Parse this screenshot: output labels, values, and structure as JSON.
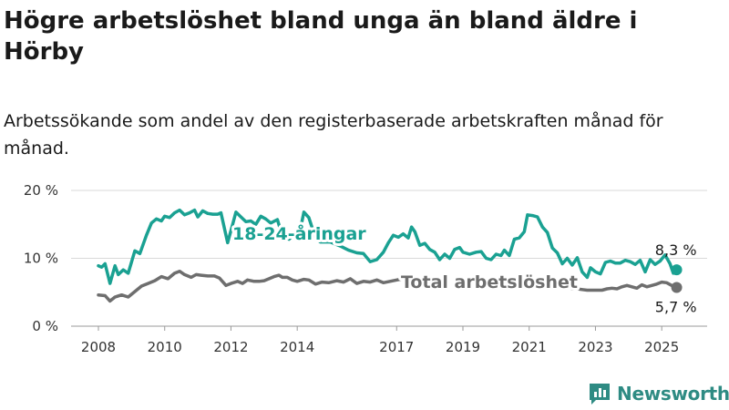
{
  "title": "Högre arbetslöshet bland unga än bland äldre i Hörby",
  "subtitle": "Arbetssökande som andel av den registerbaserade arbetskraften månad för månad.",
  "brand": "Newsworthy",
  "colors": {
    "youth": "#1aa192",
    "total": "#6e6e6e",
    "grid": "#d9d9d9",
    "brand": "#2e8b83"
  },
  "chart_data": {
    "type": "line",
    "y_unit": "%",
    "ylim": [
      0,
      20
    ],
    "y_ticks": [
      0,
      10,
      20
    ],
    "y_tick_labels": [
      "0 %",
      "10 %",
      "20 %"
    ],
    "x_range": [
      2008.0,
      2025.6
    ],
    "x_ticks": [
      2008,
      2010,
      2012,
      2014,
      2017,
      2019,
      2021,
      2023,
      2025
    ],
    "x_tick_labels": [
      "2008",
      "2010",
      "2012",
      "2014",
      "2017",
      "2019",
      "2021",
      "2023",
      "2025"
    ],
    "grid": true,
    "legend": "inline-labels",
    "series": [
      {
        "name": "18-24-åringar",
        "end_label": "8,3 %",
        "points": [
          [
            2008.0,
            8.9
          ],
          [
            2008.1,
            8.7
          ],
          [
            2008.2,
            9.2
          ],
          [
            2008.35,
            6.3
          ],
          [
            2008.5,
            8.9
          ],
          [
            2008.6,
            7.6
          ],
          [
            2008.75,
            8.3
          ],
          [
            2008.9,
            7.8
          ],
          [
            2009.1,
            11.1
          ],
          [
            2009.25,
            10.7
          ],
          [
            2009.45,
            13.4
          ],
          [
            2009.6,
            15.2
          ],
          [
            2009.75,
            15.8
          ],
          [
            2009.9,
            15.5
          ],
          [
            2010.0,
            16.2
          ],
          [
            2010.15,
            16.0
          ],
          [
            2010.3,
            16.7
          ],
          [
            2010.45,
            17.1
          ],
          [
            2010.6,
            16.4
          ],
          [
            2010.75,
            16.7
          ],
          [
            2010.9,
            17.1
          ],
          [
            2011.0,
            16.1
          ],
          [
            2011.15,
            17.0
          ],
          [
            2011.3,
            16.6
          ],
          [
            2011.45,
            16.5
          ],
          [
            2011.6,
            16.5
          ],
          [
            2011.7,
            16.7
          ],
          [
            2011.9,
            12.3
          ],
          [
            2012.05,
            15.0
          ],
          [
            2012.15,
            16.8
          ],
          [
            2012.3,
            16.1
          ],
          [
            2012.45,
            15.4
          ],
          [
            2012.6,
            15.5
          ],
          [
            2012.75,
            15.0
          ],
          [
            2012.9,
            16.2
          ],
          [
            2013.05,
            15.8
          ],
          [
            2013.2,
            15.2
          ],
          [
            2013.4,
            15.7
          ],
          [
            2013.55,
            13.3
          ],
          [
            2013.75,
            12.8
          ],
          [
            2013.95,
            13.8
          ],
          [
            2014.1,
            14.4
          ],
          [
            2014.2,
            16.8
          ],
          [
            2014.35,
            16.0
          ],
          [
            2014.55,
            13.0
          ],
          [
            2014.7,
            12.4
          ],
          [
            2015.0,
            12.4
          ],
          [
            2015.3,
            11.8
          ],
          [
            2015.55,
            11.2
          ],
          [
            2015.8,
            10.8
          ],
          [
            2016.0,
            10.7
          ],
          [
            2016.2,
            9.5
          ],
          [
            2016.4,
            9.8
          ],
          [
            2016.6,
            10.9
          ],
          [
            2016.75,
            12.3
          ],
          [
            2016.9,
            13.4
          ],
          [
            2017.05,
            13.1
          ],
          [
            2017.2,
            13.6
          ],
          [
            2017.35,
            13.0
          ],
          [
            2017.45,
            14.6
          ],
          [
            2017.55,
            13.9
          ],
          [
            2017.7,
            11.9
          ],
          [
            2017.85,
            12.2
          ],
          [
            2018.0,
            11.3
          ],
          [
            2018.15,
            10.9
          ],
          [
            2018.3,
            9.8
          ],
          [
            2018.45,
            10.6
          ],
          [
            2018.6,
            10.0
          ],
          [
            2018.75,
            11.3
          ],
          [
            2018.9,
            11.6
          ],
          [
            2019.0,
            10.9
          ],
          [
            2019.2,
            10.6
          ],
          [
            2019.4,
            10.9
          ],
          [
            2019.55,
            11.0
          ],
          [
            2019.7,
            10.0
          ],
          [
            2019.85,
            9.8
          ],
          [
            2020.0,
            10.6
          ],
          [
            2020.15,
            10.4
          ],
          [
            2020.25,
            11.2
          ],
          [
            2020.4,
            10.4
          ],
          [
            2020.55,
            12.8
          ],
          [
            2020.7,
            13.0
          ],
          [
            2020.85,
            13.9
          ],
          [
            2020.95,
            16.4
          ],
          [
            2021.1,
            16.3
          ],
          [
            2021.25,
            16.1
          ],
          [
            2021.4,
            14.6
          ],
          [
            2021.55,
            13.8
          ],
          [
            2021.7,
            11.5
          ],
          [
            2021.85,
            10.8
          ],
          [
            2022.0,
            9.2
          ],
          [
            2022.15,
            10.0
          ],
          [
            2022.3,
            9.0
          ],
          [
            2022.45,
            10.1
          ],
          [
            2022.6,
            8.0
          ],
          [
            2022.75,
            7.2
          ],
          [
            2022.85,
            8.6
          ],
          [
            2023.0,
            8.0
          ],
          [
            2023.15,
            7.7
          ],
          [
            2023.3,
            9.4
          ],
          [
            2023.45,
            9.6
          ],
          [
            2023.6,
            9.3
          ],
          [
            2023.75,
            9.3
          ],
          [
            2023.9,
            9.7
          ],
          [
            2024.05,
            9.5
          ],
          [
            2024.2,
            9.1
          ],
          [
            2024.35,
            9.7
          ],
          [
            2024.5,
            8.0
          ],
          [
            2024.65,
            9.8
          ],
          [
            2024.8,
            9.1
          ],
          [
            2024.95,
            9.6
          ],
          [
            2025.1,
            10.5
          ],
          [
            2025.25,
            9.2
          ],
          [
            2025.35,
            7.8
          ],
          [
            2025.45,
            8.3
          ]
        ]
      },
      {
        "name": "Total arbetslöshet",
        "end_label": "5,7 %",
        "points": [
          [
            2008.0,
            4.6
          ],
          [
            2008.2,
            4.5
          ],
          [
            2008.35,
            3.7
          ],
          [
            2008.5,
            4.3
          ],
          [
            2008.7,
            4.6
          ],
          [
            2008.9,
            4.3
          ],
          [
            2009.1,
            5.1
          ],
          [
            2009.3,
            5.9
          ],
          [
            2009.5,
            6.3
          ],
          [
            2009.7,
            6.7
          ],
          [
            2009.9,
            7.3
          ],
          [
            2010.1,
            7.0
          ],
          [
            2010.3,
            7.8
          ],
          [
            2010.45,
            8.1
          ],
          [
            2010.6,
            7.6
          ],
          [
            2010.8,
            7.2
          ],
          [
            2010.95,
            7.6
          ],
          [
            2011.1,
            7.5
          ],
          [
            2011.3,
            7.4
          ],
          [
            2011.5,
            7.4
          ],
          [
            2011.65,
            7.1
          ],
          [
            2011.85,
            6.0
          ],
          [
            2012.0,
            6.3
          ],
          [
            2012.2,
            6.6
          ],
          [
            2012.35,
            6.3
          ],
          [
            2012.5,
            6.8
          ],
          [
            2012.7,
            6.6
          ],
          [
            2012.85,
            6.6
          ],
          [
            2013.0,
            6.7
          ],
          [
            2013.15,
            7.0
          ],
          [
            2013.3,
            7.3
          ],
          [
            2013.45,
            7.5
          ],
          [
            2013.55,
            7.2
          ],
          [
            2013.7,
            7.2
          ],
          [
            2013.85,
            6.8
          ],
          [
            2014.0,
            6.6
          ],
          [
            2014.2,
            6.9
          ],
          [
            2014.35,
            6.8
          ],
          [
            2014.55,
            6.2
          ],
          [
            2014.75,
            6.5
          ],
          [
            2014.95,
            6.4
          ],
          [
            2015.2,
            6.7
          ],
          [
            2015.4,
            6.5
          ],
          [
            2015.6,
            7.0
          ],
          [
            2015.8,
            6.3
          ],
          [
            2016.0,
            6.6
          ],
          [
            2016.2,
            6.5
          ],
          [
            2016.4,
            6.8
          ],
          [
            2016.6,
            6.4
          ],
          [
            2016.8,
            6.6
          ],
          [
            2017.0,
            6.8
          ],
          [
            2017.2,
            7.0
          ],
          null,
          [
            2022.3,
            5.5
          ],
          [
            2022.45,
            5.5
          ],
          [
            2022.6,
            5.4
          ],
          [
            2022.75,
            5.3
          ],
          [
            2022.9,
            5.3
          ],
          [
            2023.05,
            5.3
          ],
          [
            2023.2,
            5.3
          ],
          [
            2023.35,
            5.5
          ],
          [
            2023.5,
            5.6
          ],
          [
            2023.65,
            5.5
          ],
          [
            2023.8,
            5.8
          ],
          [
            2023.95,
            6.0
          ],
          [
            2024.1,
            5.8
          ],
          [
            2024.25,
            5.6
          ],
          [
            2024.4,
            6.1
          ],
          [
            2024.55,
            5.8
          ],
          [
            2024.7,
            6.0
          ],
          [
            2024.85,
            6.2
          ],
          [
            2025.0,
            6.5
          ],
          [
            2025.15,
            6.4
          ],
          [
            2025.3,
            6.0
          ],
          [
            2025.45,
            5.7
          ]
        ]
      }
    ]
  }
}
